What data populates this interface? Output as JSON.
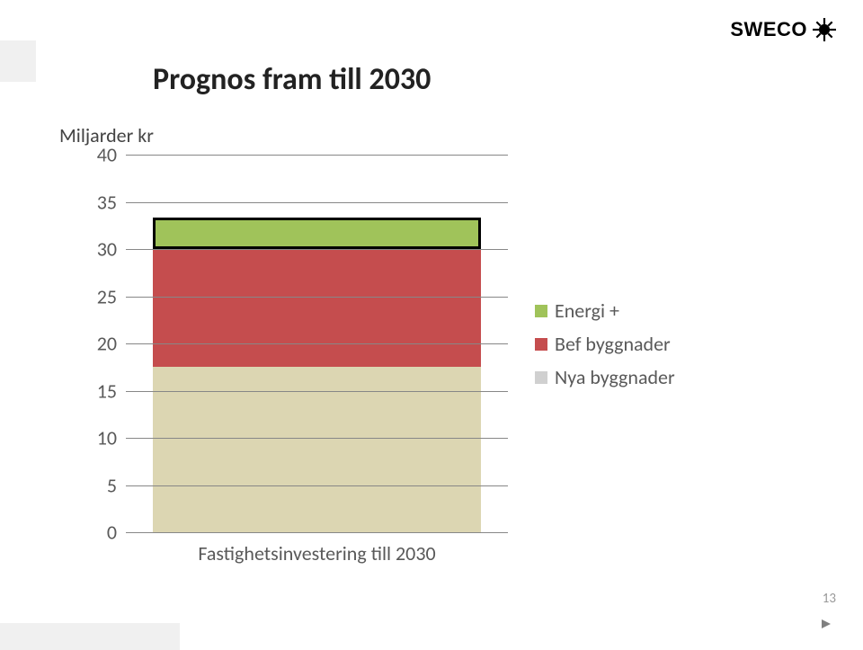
{
  "logo": {
    "text": "SWECO"
  },
  "title": "Prognos fram till 2030",
  "ylabel": "Miljarder kr",
  "page_number": "13",
  "chart": {
    "type": "stacked-bar",
    "ymin": 0,
    "ymax": 40,
    "ytick_step": 5,
    "yticks": [
      0,
      5,
      10,
      15,
      20,
      25,
      30,
      35,
      40
    ],
    "gridline_color": "#878787",
    "background": "#ffffff",
    "category_label": "Fastighetsinvestering till 2030",
    "segments": [
      {
        "key": "nya",
        "value": 17.5,
        "color": "#dcd6b2",
        "outlined": false
      },
      {
        "key": "bef",
        "value": 12.5,
        "color": "#c54d4e",
        "outlined": false
      },
      {
        "key": "energi",
        "value": 3.3,
        "color": "#a0c35a",
        "outlined": true
      }
    ],
    "legend": [
      {
        "key": "energi",
        "label": "Energi +",
        "color": "#a0c35a"
      },
      {
        "key": "bef",
        "label": "Bef byggnader",
        "color": "#c54d4e"
      },
      {
        "key": "nya",
        "label": "Nya byggnader",
        "color": "#d0d0d0"
      }
    ],
    "label_fontsize": 22,
    "label_color": "#595959"
  }
}
